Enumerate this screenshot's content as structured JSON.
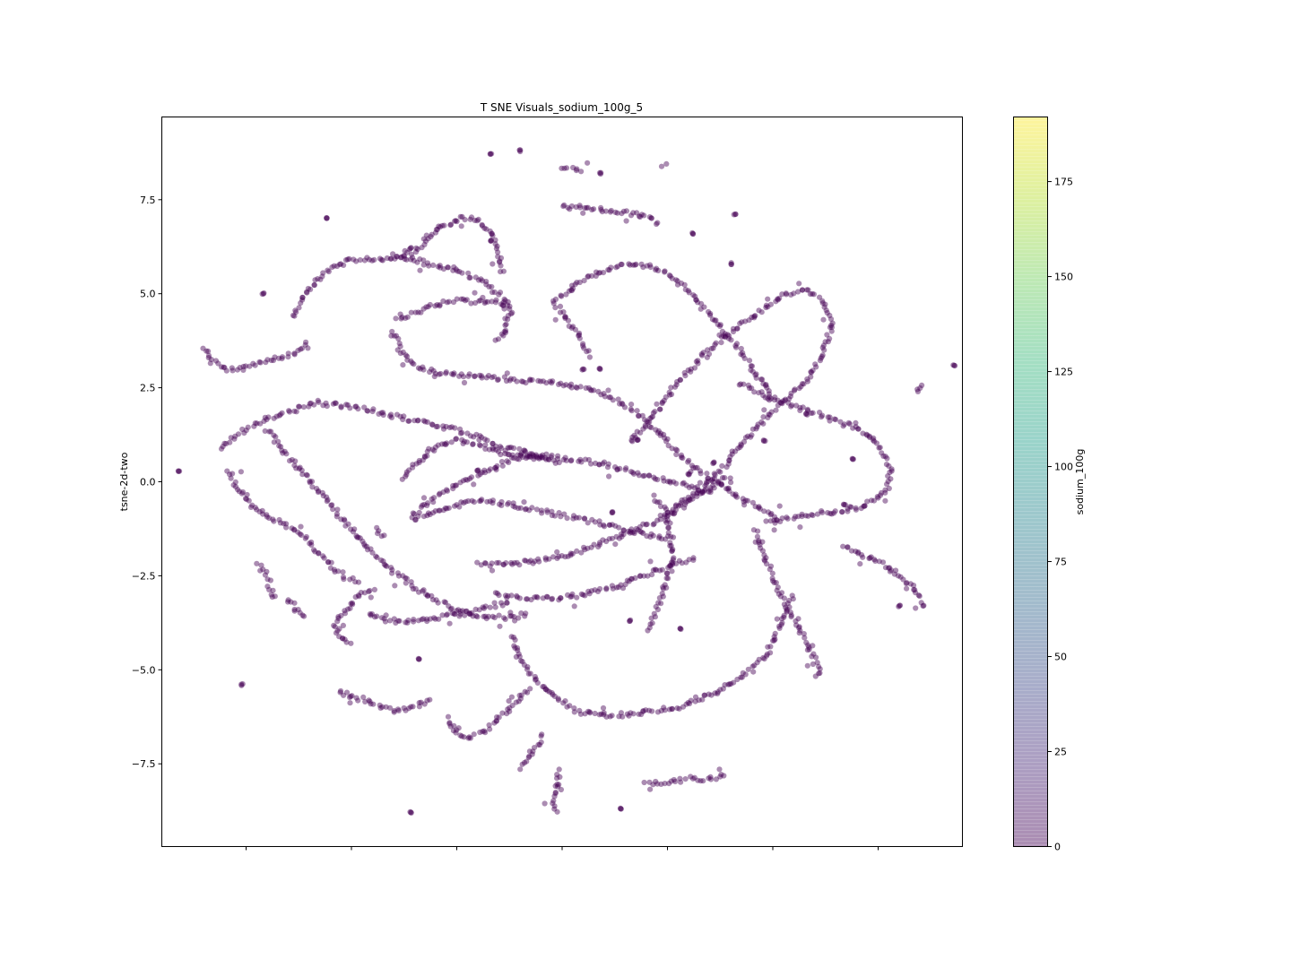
{
  "chart_data": {
    "type": "scatter",
    "title": "T SNE Visuals_sodium_100g_5",
    "xlabel": "",
    "ylabel": "tsne-2d-two",
    "xlim": [
      -9.5,
      9.5
    ],
    "ylim": [
      -9.7,
      9.7
    ],
    "x_tick_values": [
      -7.5,
      -5.0,
      -2.5,
      0.0,
      2.5,
      5.0,
      7.5
    ],
    "x_tick_labels_shown": false,
    "y_ticks": [
      {
        "value": 7.5,
        "label": "7.5"
      },
      {
        "value": 5.0,
        "label": "5.0"
      },
      {
        "value": 2.5,
        "label": "2.5"
      },
      {
        "value": 0.0,
        "label": "0.0"
      },
      {
        "value": -2.5,
        "label": "−2.5"
      },
      {
        "value": -5.0,
        "label": "−5.0"
      },
      {
        "value": -7.5,
        "label": "−7.5"
      }
    ],
    "grid": false,
    "point_color": "#440154",
    "point_alpha": 0.45,
    "colormap": "viridis",
    "colorbar": {
      "label": "sodium_100g",
      "range": [
        0,
        192
      ],
      "ticks": [
        {
          "value": 0,
          "label": "0"
        },
        {
          "value": 25,
          "label": "25"
        },
        {
          "value": 50,
          "label": "50"
        },
        {
          "value": 75,
          "label": "75"
        },
        {
          "value": 100,
          "label": "100"
        },
        {
          "value": 125,
          "label": "125"
        },
        {
          "value": 150,
          "label": "150"
        },
        {
          "value": 175,
          "label": "175"
        }
      ],
      "stops": [
        "#440154",
        "#482878",
        "#3e4989",
        "#31688e",
        "#26828e",
        "#1f9e89",
        "#35b779",
        "#6ece58",
        "#b5de2b",
        "#fde725"
      ]
    },
    "series": [
      {
        "color_value": 0,
        "clusters": [
          {
            "x": [
              -6.4,
              -6.1,
              -5.6,
              -5.0,
              -4.3,
              -3.5,
              -3.0,
              -2.4,
              -2.0,
              -1.6,
              -1.4
            ],
            "y": [
              4.4,
              5.0,
              5.6,
              5.9,
              5.9,
              6.1,
              6.7,
              7.0,
              7.0,
              6.5,
              5.5
            ]
          },
          {
            "x": [
              -8.5,
              -8.3,
              -8.0,
              -7.6,
              -7.0,
              -6.4,
              -6.0
            ],
            "y": [
              3.6,
              3.2,
              3.0,
              3.0,
              3.2,
              3.4,
              3.7
            ]
          },
          {
            "x": [
              -4.0,
              -3.5,
              -2.8,
              -2.0,
              -1.5,
              -1.2,
              -1.4,
              -1.6
            ],
            "y": [
              6.0,
              5.9,
              5.7,
              5.4,
              5.0,
              4.6,
              4.0,
              3.7
            ]
          },
          {
            "x": [
              -3.9,
              -3.5,
              -3.0,
              -2.5,
              -2.0,
              -1.6,
              -1.3
            ],
            "y": [
              4.3,
              4.5,
              4.7,
              4.8,
              4.8,
              4.8,
              4.7
            ]
          },
          {
            "x": [
              -4.0,
              -3.8,
              -3.4,
              -2.8,
              -2.0,
              -1.0,
              0.0,
              0.8,
              1.6,
              2.2,
              2.8,
              3.5,
              4.2,
              4.8,
              5.2
            ],
            "y": [
              4.0,
              3.4,
              3.0,
              2.9,
              2.8,
              2.7,
              2.6,
              2.4,
              2.0,
              1.4,
              0.7,
              0.1,
              -0.4,
              -0.8,
              -1.0
            ]
          },
          {
            "x": [
              -0.1,
              0.5,
              1.2,
              1.8,
              2.4,
              2.9,
              3.3,
              3.7,
              4.1,
              4.4,
              4.6,
              4.8,
              4.9,
              5.0
            ],
            "y": [
              4.9,
              5.4,
              5.7,
              5.8,
              5.6,
              5.2,
              4.7,
              4.2,
              3.7,
              3.2,
              2.8,
              2.6,
              2.4,
              2.2
            ]
          },
          {
            "x": [
              -0.2,
              0.1,
              0.4,
              0.6,
              0.7
            ],
            "y": [
              4.8,
              4.3,
              3.9,
              3.5,
              3.3
            ]
          },
          {
            "x": [
              0.0,
              0.6,
              1.2,
              1.8,
              2.3
            ],
            "y": [
              7.3,
              7.3,
              7.2,
              7.1,
              6.9
            ]
          },
          {
            "x": [
              2.5,
              3.2,
              3.9,
              4.5,
              5.1,
              5.8,
              6.2,
              6.4,
              6.2,
              5.8,
              5.3,
              4.8,
              4.3,
              3.8,
              3.3,
              2.7,
              2.2,
              1.6
            ],
            "y": [
              -1.0,
              -0.3,
              0.5,
              1.3,
              2.0,
              2.7,
              3.4,
              4.2,
              4.8,
              5.1,
              5.0,
              4.6,
              4.2,
              3.8,
              3.3,
              2.6,
              1.8,
              1.0
            ]
          },
          {
            "x": [
              4.2,
              5.0,
              5.8,
              6.6,
              7.2,
              7.6,
              7.8,
              7.7,
              7.4,
              7.0,
              6.4,
              5.8,
              5.2,
              4.8
            ],
            "y": [
              2.6,
              2.2,
              1.9,
              1.6,
              1.3,
              0.8,
              0.3,
              -0.2,
              -0.5,
              -0.7,
              -0.8,
              -0.9,
              -1.0,
              -1.1
            ]
          },
          {
            "x": [
              -7.9,
              -7.7,
              -7.4,
              -7.0,
              -6.5,
              -6.0,
              -5.6,
              -5.2,
              -4.8
            ],
            "y": [
              0.3,
              -0.2,
              -0.6,
              -0.9,
              -1.2,
              -1.6,
              -2.1,
              -2.5,
              -2.7
            ]
          },
          {
            "x": [
              -8.1,
              -7.6,
              -7.0,
              -6.4,
              -5.8,
              -5.0,
              -4.2,
              -3.4,
              -2.6,
              -1.8,
              -1.0,
              -0.4
            ],
            "y": [
              0.9,
              1.3,
              1.7,
              1.9,
              2.1,
              2.0,
              1.8,
              1.6,
              1.4,
              1.1,
              0.8,
              0.7
            ]
          },
          {
            "x": [
              -7.0,
              -6.5,
              -5.9,
              -5.3,
              -4.7,
              -4.1,
              -3.5,
              -2.9,
              -2.3,
              -1.7,
              -1.2,
              -0.8
            ],
            "y": [
              1.4,
              0.7,
              -0.1,
              -0.9,
              -1.6,
              -2.3,
              -2.8,
              -3.2,
              -3.5,
              -3.6,
              -3.6,
              -3.5
            ]
          },
          {
            "x": [
              -3.6,
              -3.0,
              -2.4,
              -1.8,
              -1.2,
              -0.5,
              0.2,
              0.9,
              1.6,
              2.3,
              3.0,
              3.6
            ],
            "y": [
              -0.9,
              -0.4,
              0.0,
              0.3,
              0.6,
              0.7,
              0.6,
              0.5,
              0.3,
              0.1,
              -0.1,
              -0.3
            ]
          },
          {
            "x": [
              -3.8,
              -3.4,
              -3.0,
              -2.5,
              -2.0,
              -1.5,
              -1.0,
              -0.5,
              0.0
            ],
            "y": [
              0.1,
              0.5,
              0.9,
              1.1,
              1.0,
              0.8,
              0.7,
              0.6,
              0.5
            ]
          },
          {
            "x": [
              -3.5,
              -2.8,
              -2.0,
              -1.2,
              -0.4,
              0.5,
              1.3,
              2.0,
              2.6
            ],
            "y": [
              -1.0,
              -0.7,
              -0.5,
              -0.6,
              -0.8,
              -1.0,
              -1.2,
              -1.4,
              -1.5
            ]
          },
          {
            "x": [
              -2.0,
              -1.3,
              -0.5,
              0.3,
              1.0,
              1.7,
              2.3,
              2.8,
              3.3,
              3.7,
              4.0
            ],
            "y": [
              -2.2,
              -2.2,
              -2.1,
              -1.9,
              -1.6,
              -1.3,
              -1.0,
              -0.6,
              -0.3,
              -0.1,
              0.2
            ]
          },
          {
            "x": [
              -1.6,
              -0.9,
              -0.2,
              0.5,
              1.2,
              1.9,
              2.6,
              3.2
            ],
            "y": [
              -3.0,
              -3.1,
              -3.1,
              -3.0,
              -2.8,
              -2.5,
              -2.2,
              -2.0
            ]
          },
          {
            "x": [
              2.2,
              2.5,
              2.6,
              2.6,
              2.4,
              2.2,
              2.0
            ],
            "y": [
              -0.4,
              -0.9,
              -1.5,
              -2.2,
              -2.9,
              -3.5,
              -4.0
            ]
          },
          {
            "x": [
              -4.6,
              -4.1,
              -3.5,
              -2.9,
              -2.3,
              -1.7,
              -1.2
            ],
            "y": [
              -3.5,
              -3.7,
              -3.7,
              -3.6,
              -3.5,
              -3.3,
              -3.2
            ]
          },
          {
            "x": [
              -5.4,
              -5.1,
              -4.8,
              -4.6,
              -4.4
            ],
            "y": [
              -3.8,
              -3.4,
              -3.0,
              -2.9,
              -2.8
            ]
          },
          {
            "x": [
              -5.4,
              -5.2,
              -5.0
            ],
            "y": [
              -3.9,
              -4.2,
              -4.4
            ]
          },
          {
            "x": [
              -1.2,
              -0.9,
              -0.6,
              -0.2,
              0.3,
              0.9,
              1.5,
              2.1,
              2.8,
              3.4,
              4.0,
              4.5,
              4.9,
              5.1,
              5.3,
              5.5
            ],
            "y": [
              -4.1,
              -4.8,
              -5.3,
              -5.7,
              -6.1,
              -6.2,
              -6.2,
              -6.1,
              -6.0,
              -5.7,
              -5.4,
              -5.0,
              -4.5,
              -4.0,
              -3.5,
              -3.0
            ]
          },
          {
            "x": [
              4.6,
              4.8,
              5.1,
              5.4,
              5.7,
              5.9,
              6.0,
              6.1,
              6.0
            ],
            "y": [
              -1.3,
              -2.0,
              -2.8,
              -3.5,
              -4.1,
              -4.5,
              -4.8,
              -5.0,
              -5.3
            ]
          },
          {
            "x": [
              6.7,
              7.0,
              7.3,
              7.6,
              8.0,
              8.3,
              8.5,
              8.6
            ],
            "y": [
              -1.7,
              -1.9,
              -2.0,
              -2.2,
              -2.5,
              -2.8,
              -3.1,
              -3.4
            ]
          },
          {
            "x": [
              -2.7,
              -2.5,
              -2.2,
              -1.8,
              -1.4,
              -1.1,
              -0.9,
              -0.7
            ],
            "y": [
              -6.3,
              -6.7,
              -6.8,
              -6.6,
              -6.2,
              -5.9,
              -5.6,
              -5.5
            ]
          },
          {
            "x": [
              -5.3,
              -5.0,
              -4.7,
              -4.3,
              -3.9,
              -3.5,
              -3.1
            ],
            "y": [
              -5.6,
              -5.7,
              -5.8,
              -6.0,
              -6.1,
              -6.0,
              -5.8
            ]
          },
          {
            "x": [
              -1.0,
              -0.8,
              -0.6,
              -0.4
            ],
            "y": [
              -7.6,
              -7.3,
              -7.0,
              -6.7
            ]
          },
          {
            "x": [
              2.0,
              2.5,
              3.0,
              3.5,
              3.9
            ],
            "y": [
              -8.0,
              -8.0,
              -7.9,
              -7.9,
              -7.8
            ]
          },
          {
            "x": [
              -0.1,
              -0.1,
              -0.2,
              -0.2,
              -0.1
            ],
            "y": [
              -7.7,
              -8.0,
              -8.3,
              -8.6,
              -8.8
            ]
          },
          {
            "x": [
              -7.2,
              -7.0,
              -6.9,
              -6.8
            ],
            "y": [
              -2.2,
              -2.5,
              -2.9,
              -3.2
            ]
          },
          {
            "x": [
              -6.5,
              -6.3,
              -6.1
            ],
            "y": [
              -3.1,
              -3.4,
              -3.6
            ]
          },
          {
            "x": [
              0.0,
              0.3,
              0.5
            ],
            "y": [
              8.3,
              8.3,
              8.2
            ]
          },
          {
            "x": [
              2.4,
              2.5
            ],
            "y": [
              8.4,
              8.5
            ]
          },
          {
            "x": [
              -4.4,
              -4.3,
              -4.2
            ],
            "y": [
              -1.2,
              -1.4,
              -1.5
            ]
          },
          {
            "x": [
              8.4,
              8.6
            ],
            "y": [
              2.4,
              2.6
            ]
          }
        ],
        "singles": [
          {
            "x": -5.6,
            "y": 7.0
          },
          {
            "x": -7.1,
            "y": 5.0
          },
          {
            "x": -1.7,
            "y": 8.7
          },
          {
            "x": -1.0,
            "y": 8.8
          },
          {
            "x": 0.9,
            "y": 8.2
          },
          {
            "x": 3.1,
            "y": 6.6
          },
          {
            "x": 4.1,
            "y": 7.1
          },
          {
            "x": 9.3,
            "y": 3.1
          },
          {
            "x": -9.1,
            "y": 0.3
          },
          {
            "x": -7.6,
            "y": -5.4
          },
          {
            "x": -3.6,
            "y": -8.8
          },
          {
            "x": 1.4,
            "y": -8.7
          },
          {
            "x": 0.5,
            "y": 3.0
          },
          {
            "x": 0.9,
            "y": 3.0
          },
          {
            "x": 1.8,
            "y": 1.1
          },
          {
            "x": 1.2,
            "y": -0.8
          },
          {
            "x": -2.0,
            "y": 0.3
          },
          {
            "x": 3.6,
            "y": 0.5
          },
          {
            "x": 3.0,
            "y": 0.2
          },
          {
            "x": 4.8,
            "y": 1.1
          },
          {
            "x": 6.9,
            "y": 0.6
          },
          {
            "x": 6.7,
            "y": -0.6
          },
          {
            "x": 2.8,
            "y": -3.9
          },
          {
            "x": 1.6,
            "y": -3.7
          },
          {
            "x": -3.4,
            "y": -4.7
          },
          {
            "x": 5.8,
            "y": 1.8
          },
          {
            "x": 4.0,
            "y": 5.8
          },
          {
            "x": -1.7,
            "y": 6.4
          },
          {
            "x": -3.6,
            "y": 6.2
          },
          {
            "x": 8.0,
            "y": -3.3
          }
        ]
      }
    ]
  }
}
